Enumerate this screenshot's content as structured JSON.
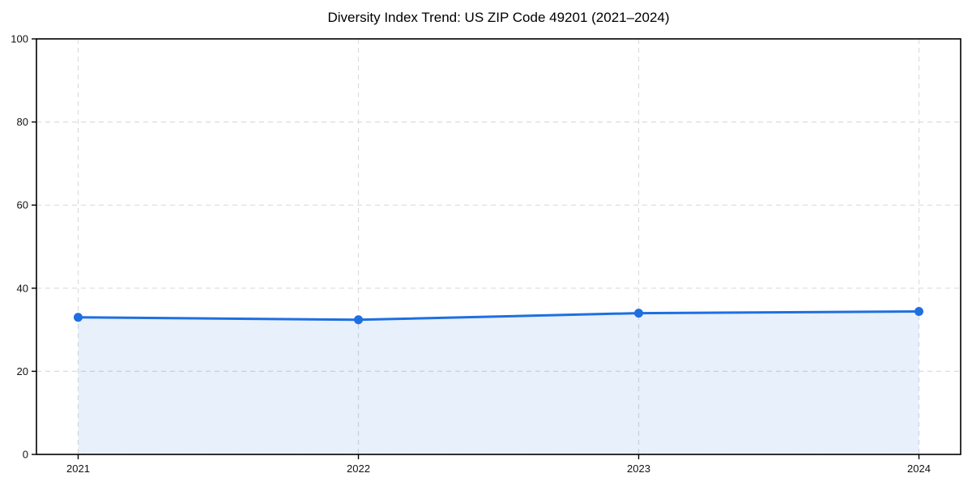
{
  "chart_data": {
    "type": "area",
    "title": "Diversity Index Trend: US ZIP Code 49201 (2021–2024)",
    "series_name": "Diversity Index",
    "categories": [
      "2021",
      "2022",
      "2023",
      "2024"
    ],
    "values": [
      33.0,
      32.4,
      34.0,
      34.4
    ],
    "xlabel": "",
    "ylabel": "",
    "ylim": [
      0,
      100
    ],
    "yticks": [
      0,
      20,
      40,
      60,
      80,
      100
    ],
    "grid": true,
    "grid_style": "dashed",
    "legend": false,
    "colors": {
      "line": "#1f6fe0",
      "marker": "#1f6fe0",
      "fill": "#1f6fe0",
      "fill_opacity": 0.1,
      "grid": "#dcdcdc",
      "spine": "#000000",
      "tick_text": "#111111",
      "title_text": "#000000",
      "background": "#ffffff"
    }
  }
}
